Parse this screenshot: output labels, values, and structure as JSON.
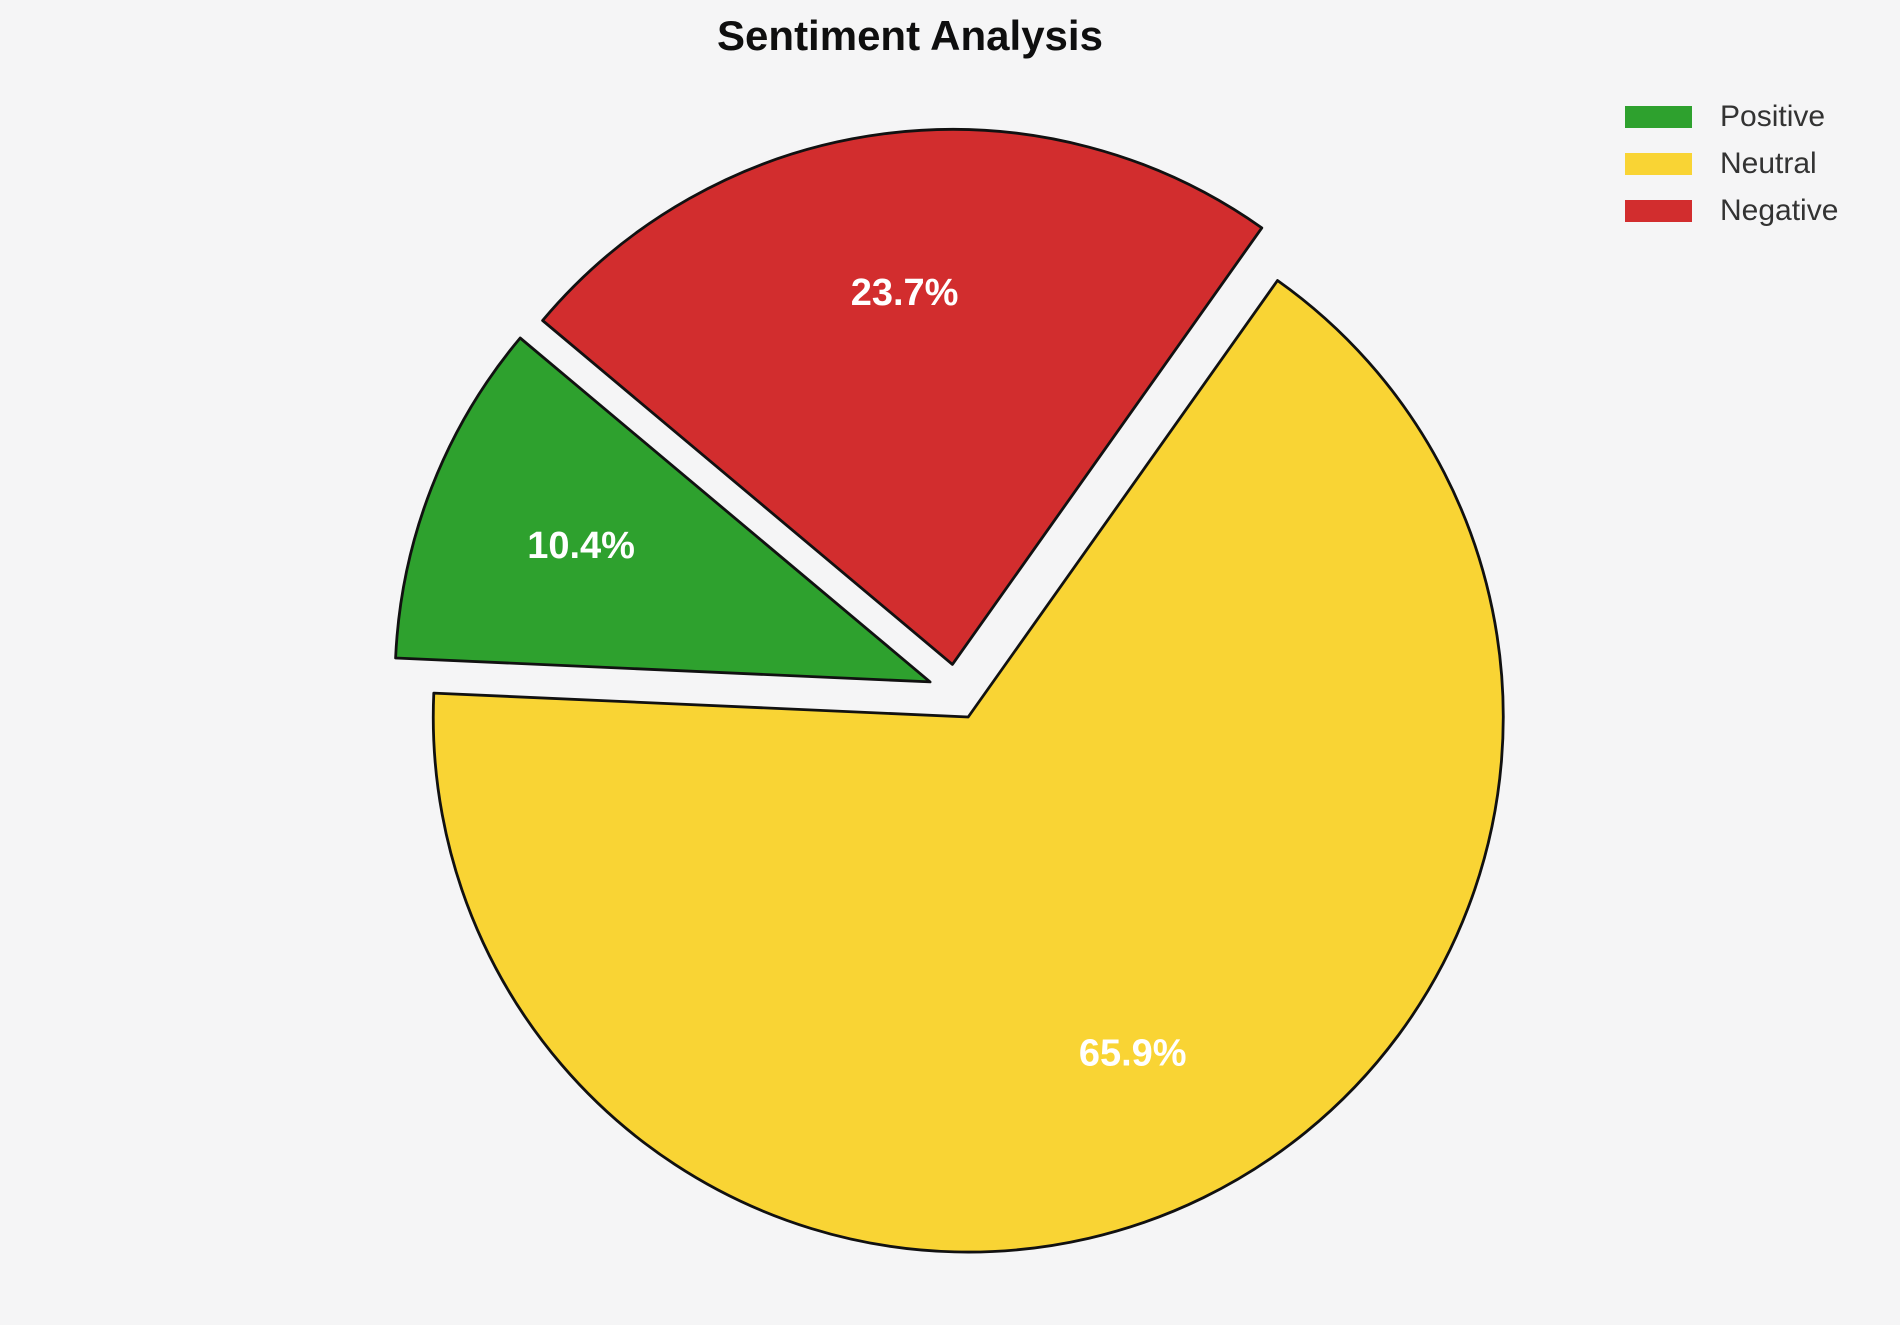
{
  "title": "Sentiment Analysis",
  "background_color": "#f5f5f6",
  "chart_data": {
    "type": "pie",
    "title": "Sentiment Analysis",
    "slices": [
      {
        "name": "Positive",
        "value": 10.4,
        "pct_label": "10.4%",
        "color": "#2ea12e"
      },
      {
        "name": "Neutral",
        "value": 65.9,
        "pct_label": "65.9%",
        "color": "#f9d434"
      },
      {
        "name": "Negative",
        "value": 23.7,
        "pct_label": "23.7%",
        "color": "#d22d2e"
      }
    ],
    "start_angle": 140,
    "direction": "counterclockwise",
    "explode": 0.052,
    "pct_distance": 0.7,
    "edge_color": "#111111",
    "edge_width": 2.8,
    "pct_label_color": "#ffffff",
    "legend_position": "upper-right",
    "legend_entries": [
      "Positive",
      "Neutral",
      "Negative"
    ]
  }
}
